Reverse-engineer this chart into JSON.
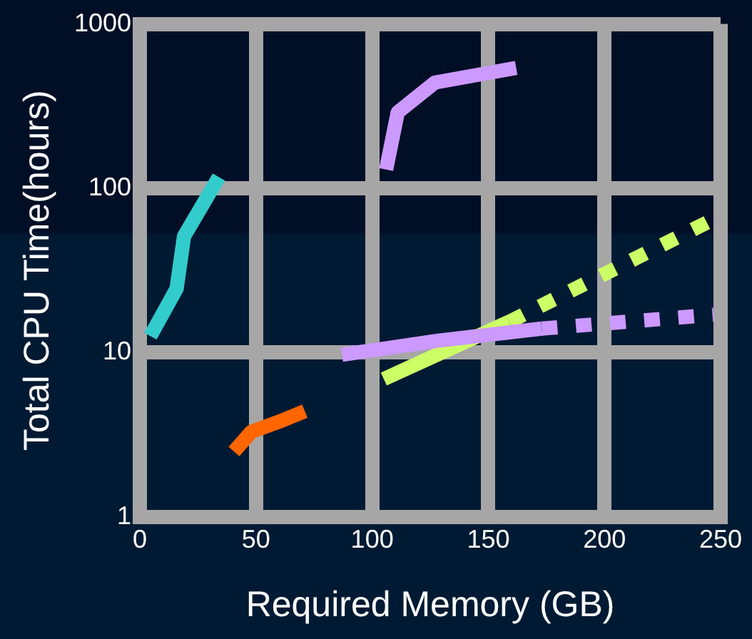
{
  "chart_data": {
    "type": "line",
    "xlabel": "Required Memory (GB)",
    "ylabel": "Total CPU Time(hours)",
    "log": "y",
    "xlim": [
      0,
      250
    ],
    "xticks": [
      0,
      50,
      100,
      150,
      200,
      250
    ],
    "ylim": [
      1,
      1000
    ],
    "yticks": [
      1,
      10,
      100,
      1000
    ],
    "grid": true,
    "legend": false,
    "marker": "none",
    "series": [
      {
        "color": "#33cccc",
        "x": [
          4.5,
          15.8,
          19,
          34
        ],
        "values": [
          12.6,
          24.5,
          51,
          117
        ]
      },
      {
        "color": "#ff6600",
        "x": [
          40.5,
          48,
          60,
          71
        ],
        "values": [
          2.5,
          3.3,
          3.8,
          4.4
        ]
      },
      {
        "color": "#cc99ff",
        "x": [
          106,
          111,
          127,
          162
        ],
        "values": [
          130,
          290,
          440,
          540
        ]
      },
      {
        "color": "#cc99ff",
        "x": [
          87,
          128,
          173
        ],
        "values": [
          9.7,
          11.8,
          14
        ]
      },
      {
        "color": "#cc99ff",
        "line_style": "dotted",
        "x": [
          173,
          247
        ],
        "values": [
          14,
          17
        ]
      },
      {
        "color": "#ccff66",
        "x": [
          105,
          159
        ],
        "values": [
          6.9,
          15.4
        ]
      },
      {
        "color": "#ccff66",
        "line_style": "dotted",
        "x": [
          159,
          249
        ],
        "values": [
          15.4,
          67
        ]
      }
    ]
  }
}
